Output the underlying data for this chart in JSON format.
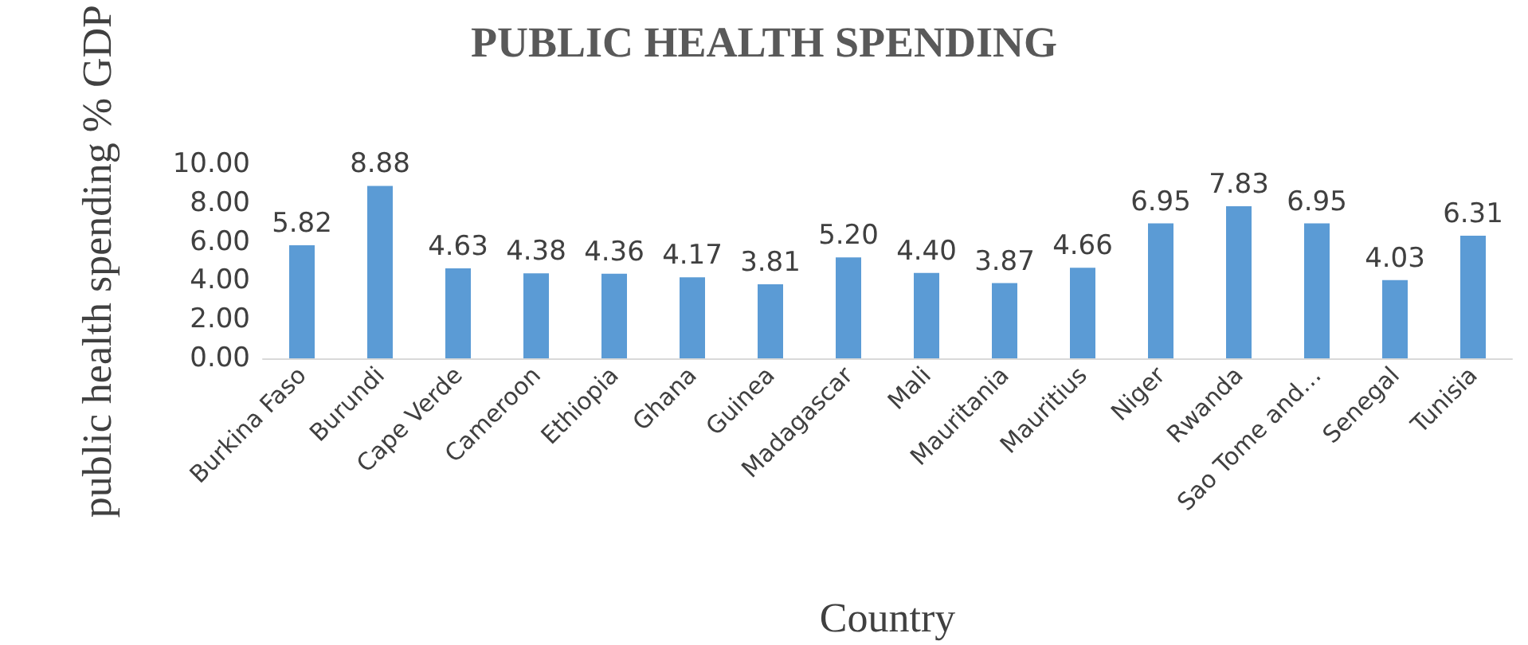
{
  "chart_data": {
    "type": "bar",
    "title": "PUBLIC HEALTH SPENDING",
    "xlabel": "Country",
    "ylabel": "public health spending % GDP",
    "categories": [
      "Burkina Faso",
      "Burundi",
      "Cape Verde",
      "Cameroon",
      "Ethiopia",
      "Ghana",
      "Guinea",
      "Madagascar",
      "Mali",
      "Mauritania",
      "Mauritius",
      "Niger",
      "Rwanda",
      "Sao Tome and…",
      "Senegal",
      "Tunisia"
    ],
    "values": [
      5.82,
      8.88,
      4.63,
      4.38,
      4.36,
      4.17,
      3.81,
      5.2,
      4.4,
      3.87,
      4.66,
      6.95,
      7.83,
      6.95,
      4.03,
      6.31
    ],
    "color": "#5b9bd5",
    "ylim": [
      0,
      10
    ],
    "yticks": [
      {
        "value": 0,
        "label": "0.00"
      },
      {
        "value": 2,
        "label": "2.00"
      },
      {
        "value": 4,
        "label": "4.00"
      },
      {
        "value": 6,
        "label": "6.00"
      },
      {
        "value": 8,
        "label": "8.00"
      },
      {
        "value": 10,
        "label": "10.00"
      }
    ],
    "value_labels": [
      "5.82",
      "8.88",
      "4.63",
      "4.38",
      "4.36",
      "4.17",
      "3.81",
      "5.20",
      "4.40",
      "3.87",
      "4.66",
      "6.95",
      "7.83",
      "6.95",
      "4.03",
      "6.31"
    ],
    "grid": false
  }
}
